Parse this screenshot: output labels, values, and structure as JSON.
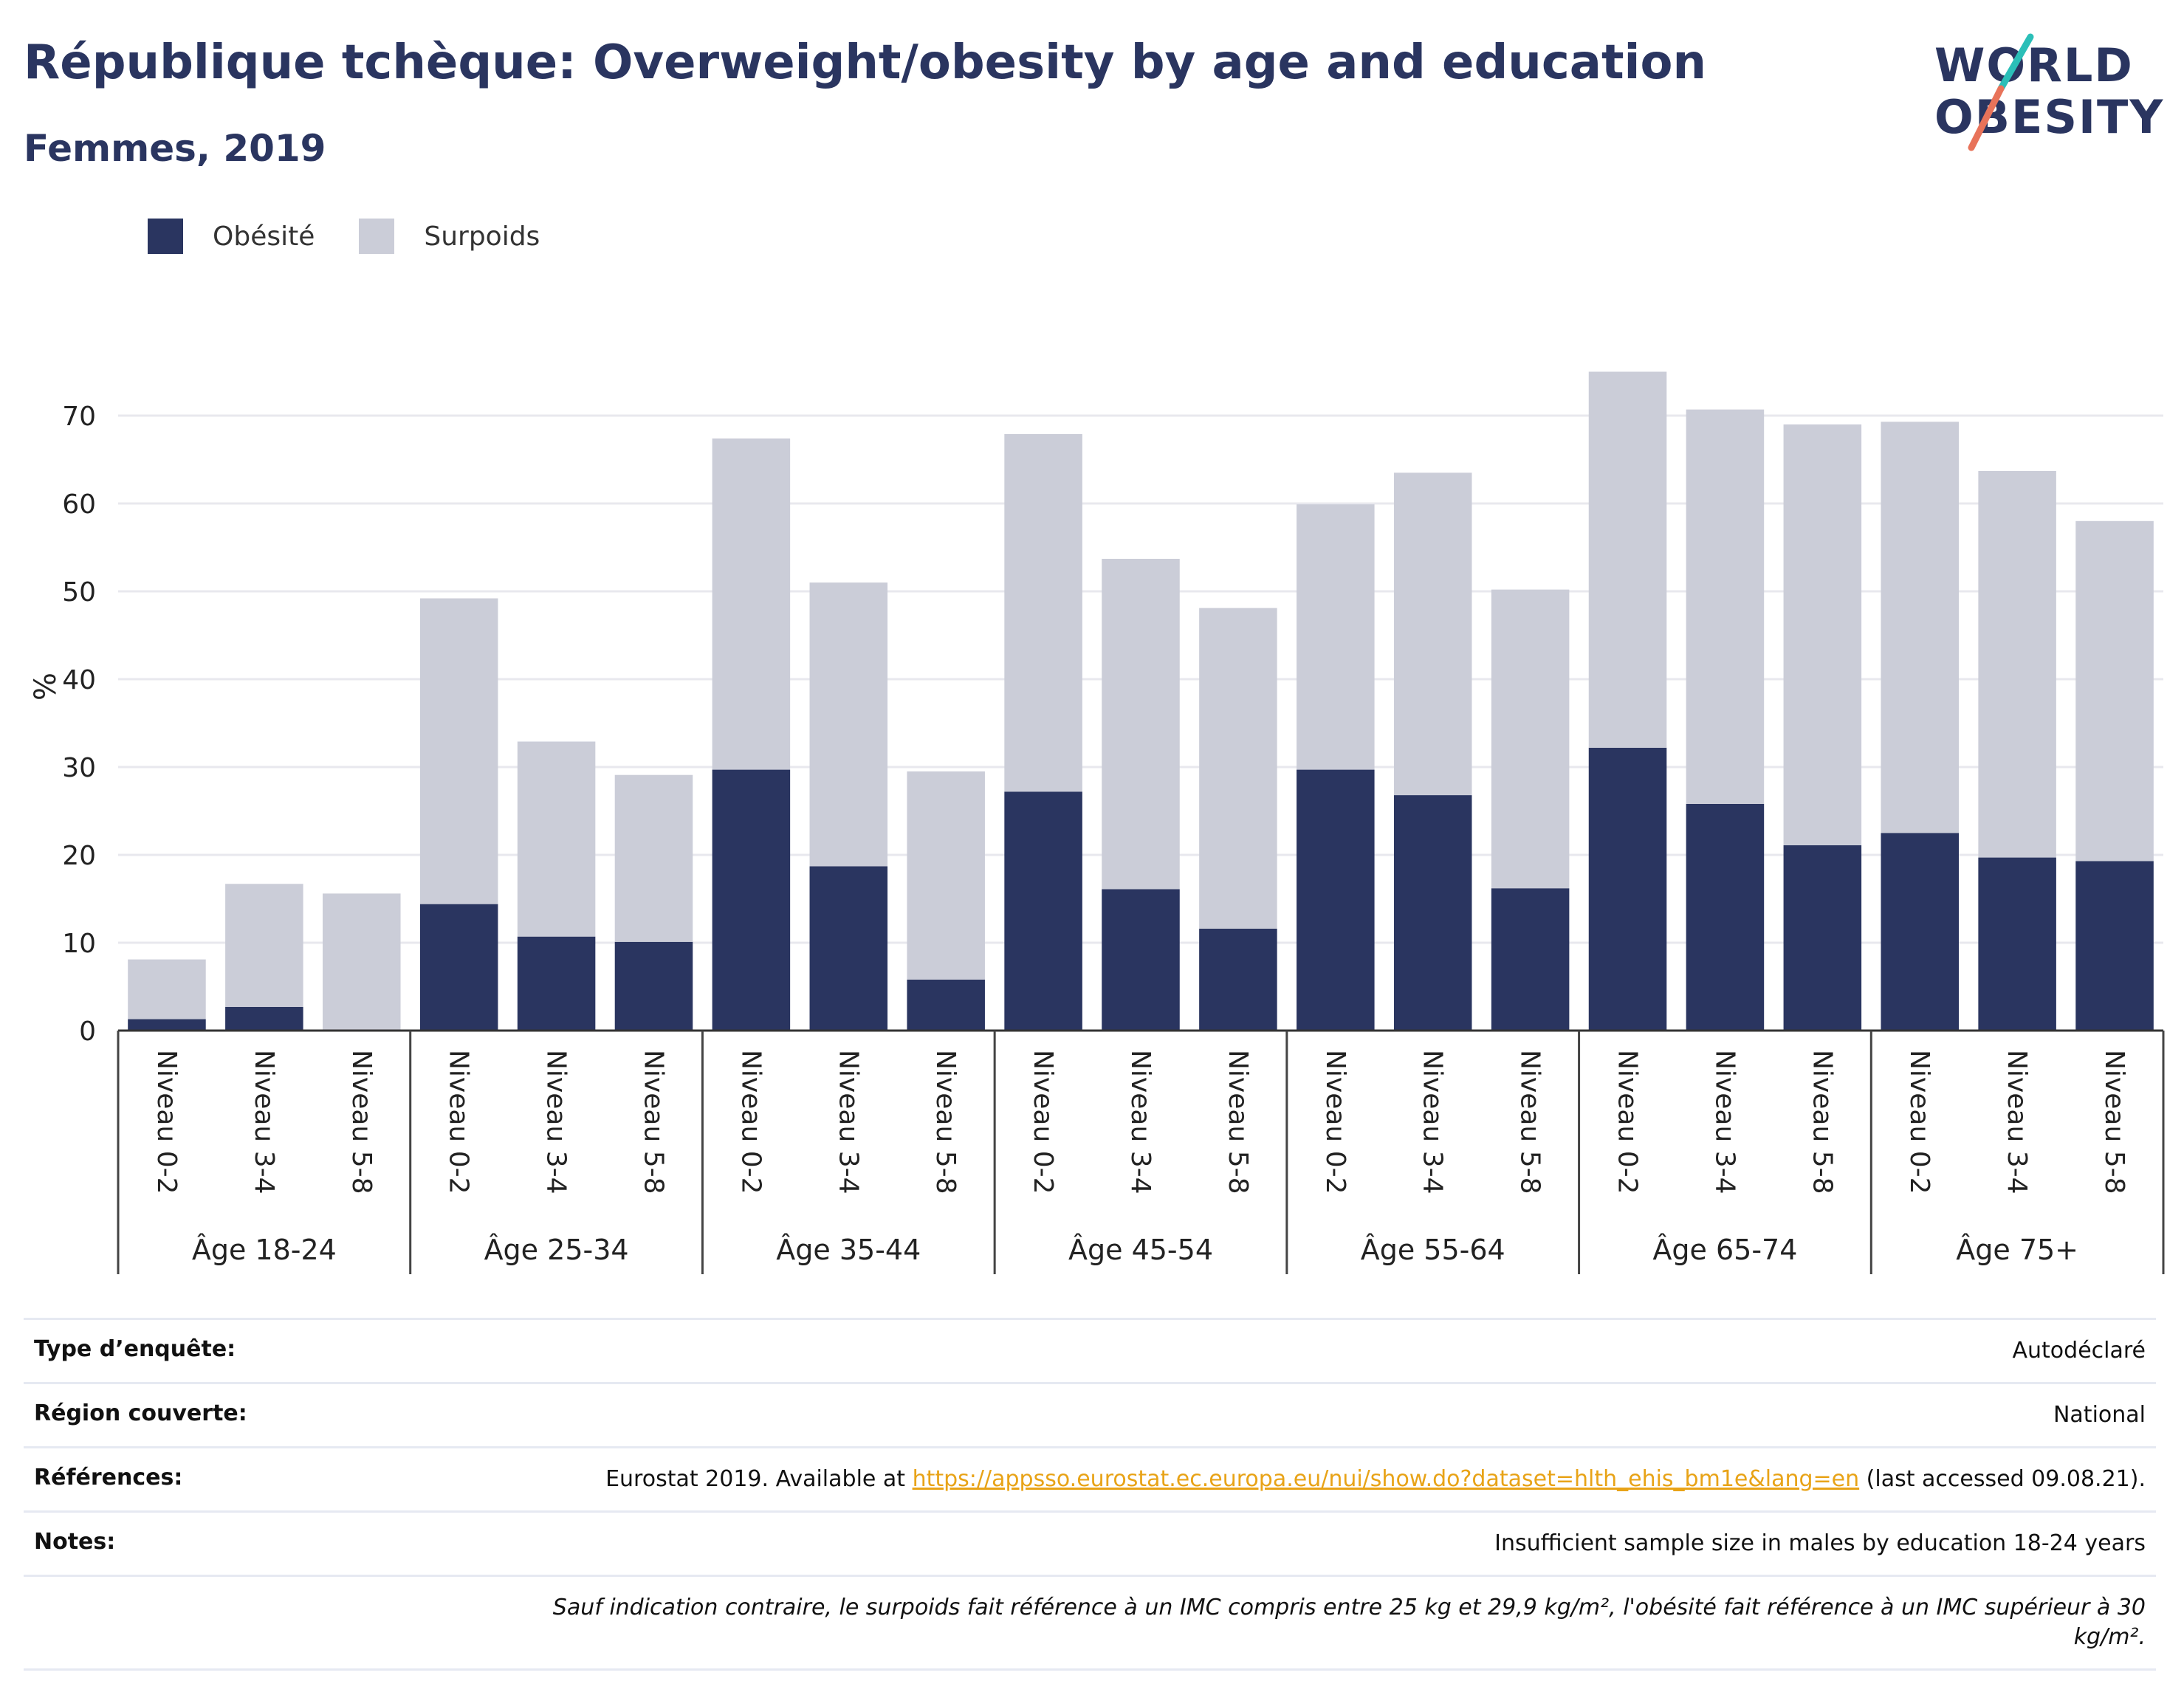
{
  "header": {
    "title": "République tchèque: Overweight/obesity by age and education",
    "subtitle": "Femmes, 2019"
  },
  "logo": {
    "line1": "WORLD",
    "line2": "OBESITY"
  },
  "colors": {
    "obesite": "#2a3560",
    "surpoids": "#cbcdd8",
    "grid": "#e8e8ee",
    "link": "#e8a317"
  },
  "legend": [
    {
      "label": "Obésité",
      "color": "#2a3560"
    },
    {
      "label": "Surpoids",
      "color": "#cbcdd8"
    }
  ],
  "chart_data": {
    "type": "bar",
    "stacked": true,
    "ylabel": "%",
    "ylim": [
      0,
      78
    ],
    "yticks": [
      0,
      10,
      20,
      30,
      40,
      50,
      60,
      70
    ],
    "grid": true,
    "legend_position": "top-left",
    "groups": [
      "Âge 18-24",
      "Âge 25-34",
      "Âge 35-44",
      "Âge 45-54",
      "Âge 55-64",
      "Âge 65-74",
      "Âge 75+"
    ],
    "subcategories": [
      "Niveau 0-2",
      "Niveau 3-4",
      "Niveau 5-8"
    ],
    "series": [
      {
        "name": "Obésité",
        "values": [
          1.3,
          2.7,
          0,
          14.4,
          10.7,
          10.1,
          29.7,
          18.7,
          5.8,
          27.2,
          16.1,
          11.6,
          29.7,
          26.8,
          16.2,
          32.2,
          25.8,
          21.1,
          22.5,
          19.7,
          19.3
        ]
      },
      {
        "name": "Surpoids",
        "values": [
          6.8,
          14.0,
          15.6,
          34.8,
          22.2,
          19.0,
          37.7,
          32.3,
          23.7,
          40.7,
          37.6,
          36.5,
          30.2,
          36.7,
          34.0,
          42.8,
          44.9,
          47.9,
          46.8,
          44.0,
          38.7
        ]
      }
    ]
  },
  "info": {
    "survey_type": {
      "label": "Type d’enquête:",
      "value": "Autodéclaré"
    },
    "region": {
      "label": "Région couverte:",
      "value": "National"
    },
    "references": {
      "label": "Références:",
      "text_before": "Eurostat 2019. Available at ",
      "link": "https://appsso.eurostat.ec.europa.eu/nui/show.do?dataset=hlth_ehis_bm1e&lang=en",
      "text_after": " (last accessed 09.08.21)."
    },
    "notes": {
      "label": "Notes:",
      "value": "Insufficient sample size in males by education 18-24 years"
    },
    "footnote": "Sauf indication contraire, le surpoids fait référence à un IMC compris entre 25 kg et 29,9 kg/m², l'obésité fait référence à un IMC supérieur à 30 kg/m²."
  }
}
